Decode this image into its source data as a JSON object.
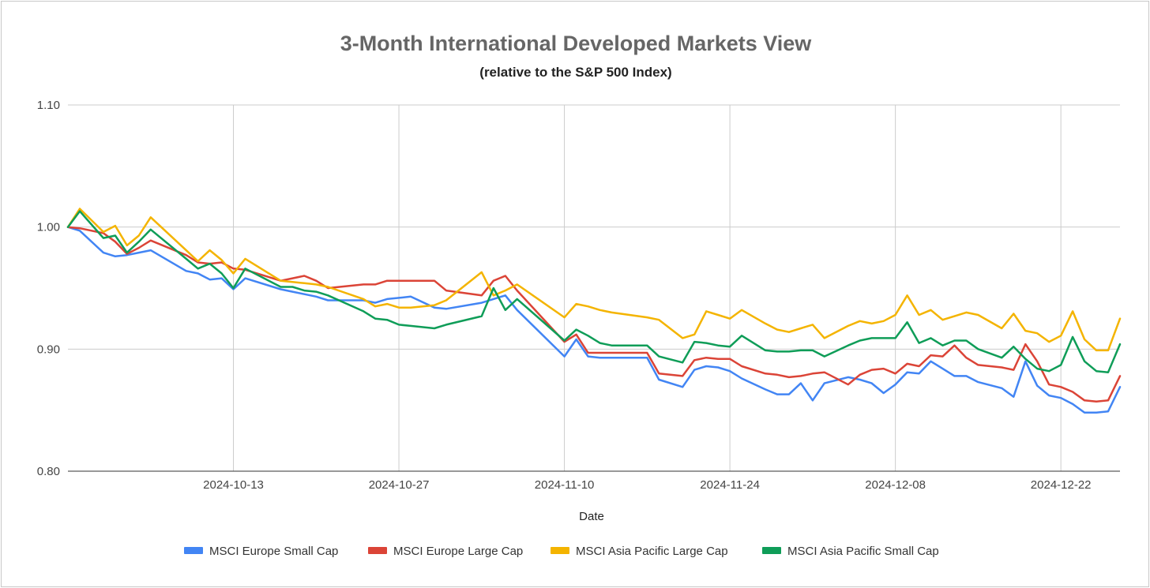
{
  "chart_data": {
    "type": "line",
    "title": "3-Month International Developed Markets View",
    "subtitle": "(relative to the S&P 500 Index)",
    "xlabel": "Date",
    "ylabel": "",
    "ylim": [
      0.8,
      1.1
    ],
    "yticks": [
      0.8,
      0.9,
      1.0,
      1.1
    ],
    "ytick_labels": [
      "0.80",
      "0.90",
      "1.00",
      "1.10"
    ],
    "xlim": [
      0,
      89
    ],
    "xticks": [
      {
        "t": 14,
        "label": "2024-10-13"
      },
      {
        "t": 28,
        "label": "2024-10-27"
      },
      {
        "t": 42,
        "label": "2024-11-10"
      },
      {
        "t": 56,
        "label": "2024-11-24"
      },
      {
        "t": 70,
        "label": "2024-12-08"
      },
      {
        "t": 84,
        "label": "2024-12-22"
      }
    ],
    "grid": true,
    "legend_position": "bottom",
    "series": [
      {
        "name": "MSCI Europe Small Cap",
        "color": "#4285f4",
        "x": [
          0,
          1,
          3,
          4,
          5,
          6,
          7,
          10,
          11,
          12,
          13,
          14,
          15,
          18,
          19,
          20,
          21,
          22,
          25,
          26,
          27,
          28,
          29,
          31,
          32,
          35,
          36,
          37,
          38,
          42,
          43,
          44,
          45,
          46,
          49,
          50,
          52,
          53,
          54,
          55,
          56,
          57,
          59,
          60,
          61,
          62,
          63,
          64,
          66,
          67,
          68,
          69,
          70,
          71,
          72,
          73,
          74,
          75,
          76,
          77,
          79,
          80,
          81,
          82,
          83,
          84,
          85,
          86,
          87,
          88,
          89
        ],
        "y": [
          1.0,
          0.997,
          0.979,
          0.976,
          0.977,
          0.979,
          0.981,
          0.964,
          0.962,
          0.957,
          0.958,
          0.949,
          0.958,
          0.949,
          0.947,
          0.945,
          0.943,
          0.94,
          0.94,
          0.938,
          0.941,
          0.942,
          0.943,
          0.934,
          0.933,
          0.938,
          0.941,
          0.944,
          0.932,
          0.894,
          0.908,
          0.894,
          0.893,
          0.893,
          0.893,
          0.875,
          0.869,
          0.883,
          0.886,
          0.885,
          0.882,
          0.876,
          0.867,
          0.863,
          0.863,
          0.872,
          0.858,
          0.872,
          0.877,
          0.875,
          0.872,
          0.864,
          0.871,
          0.881,
          0.88,
          0.89,
          0.884,
          0.878,
          0.878,
          0.873,
          0.868,
          0.861,
          0.89,
          0.87,
          0.862,
          0.86,
          0.855,
          0.848,
          0.848,
          0.849,
          0.869
        ]
      },
      {
        "name": "MSCI Europe Large Cap",
        "color": "#db4437",
        "x": [
          0,
          1,
          3,
          4,
          5,
          6,
          7,
          10,
          11,
          12,
          13,
          14,
          15,
          18,
          19,
          20,
          21,
          22,
          25,
          26,
          27,
          28,
          29,
          31,
          32,
          35,
          36,
          37,
          38,
          42,
          43,
          44,
          45,
          46,
          49,
          50,
          52,
          53,
          54,
          55,
          56,
          57,
          59,
          60,
          61,
          62,
          63,
          64,
          66,
          67,
          68,
          69,
          70,
          71,
          72,
          73,
          74,
          75,
          76,
          77,
          79,
          80,
          81,
          82,
          83,
          84,
          85,
          86,
          87,
          88,
          89
        ],
        "y": [
          1.0,
          0.999,
          0.995,
          0.988,
          0.978,
          0.983,
          0.989,
          0.977,
          0.971,
          0.97,
          0.971,
          0.966,
          0.965,
          0.956,
          0.958,
          0.96,
          0.956,
          0.95,
          0.953,
          0.953,
          0.956,
          0.956,
          0.956,
          0.956,
          0.948,
          0.944,
          0.956,
          0.96,
          0.948,
          0.906,
          0.912,
          0.897,
          0.897,
          0.897,
          0.897,
          0.88,
          0.878,
          0.891,
          0.893,
          0.892,
          0.892,
          0.886,
          0.88,
          0.879,
          0.877,
          0.878,
          0.88,
          0.881,
          0.871,
          0.879,
          0.883,
          0.884,
          0.88,
          0.888,
          0.886,
          0.895,
          0.894,
          0.903,
          0.893,
          0.887,
          0.885,
          0.883,
          0.904,
          0.89,
          0.871,
          0.869,
          0.865,
          0.858,
          0.857,
          0.858,
          0.878
        ]
      },
      {
        "name": "MSCI Asia Pacific Large Cap",
        "color": "#f4b400",
        "x": [
          0,
          1,
          3,
          4,
          5,
          6,
          7,
          10,
          11,
          12,
          13,
          14,
          15,
          18,
          19,
          20,
          21,
          22,
          25,
          26,
          27,
          28,
          29,
          31,
          32,
          35,
          36,
          37,
          38,
          42,
          43,
          44,
          45,
          46,
          49,
          50,
          52,
          53,
          54,
          55,
          56,
          57,
          59,
          60,
          61,
          62,
          63,
          64,
          66,
          67,
          68,
          69,
          70,
          71,
          72,
          73,
          74,
          75,
          76,
          77,
          79,
          80,
          81,
          82,
          83,
          84,
          85,
          86,
          87,
          88,
          89
        ],
        "y": [
          1.0,
          1.015,
          0.996,
          1.001,
          0.985,
          0.993,
          1.008,
          0.981,
          0.972,
          0.981,
          0.973,
          0.962,
          0.974,
          0.956,
          0.955,
          0.954,
          0.953,
          0.951,
          0.941,
          0.935,
          0.937,
          0.934,
          0.934,
          0.936,
          0.94,
          0.963,
          0.944,
          0.948,
          0.953,
          0.926,
          0.937,
          0.935,
          0.932,
          0.93,
          0.926,
          0.924,
          0.909,
          0.912,
          0.931,
          0.928,
          0.925,
          0.932,
          0.921,
          0.916,
          0.914,
          0.917,
          0.92,
          0.909,
          0.919,
          0.923,
          0.921,
          0.923,
          0.928,
          0.944,
          0.928,
          0.932,
          0.924,
          0.927,
          0.93,
          0.928,
          0.917,
          0.929,
          0.915,
          0.913,
          0.906,
          0.911,
          0.931,
          0.908,
          0.899,
          0.899,
          0.925
        ]
      },
      {
        "name": "MSCI Asia Pacific Small Cap",
        "color": "#0f9d58",
        "x": [
          0,
          1,
          3,
          4,
          5,
          6,
          7,
          10,
          11,
          12,
          13,
          14,
          15,
          18,
          19,
          20,
          21,
          22,
          25,
          26,
          27,
          28,
          29,
          31,
          32,
          35,
          36,
          37,
          38,
          42,
          43,
          44,
          45,
          46,
          49,
          50,
          52,
          53,
          54,
          55,
          56,
          57,
          59,
          60,
          61,
          62,
          63,
          64,
          66,
          67,
          68,
          69,
          70,
          71,
          72,
          73,
          74,
          75,
          76,
          77,
          79,
          80,
          81,
          82,
          83,
          84,
          85,
          86,
          87,
          88,
          89
        ],
        "y": [
          1.0,
          1.013,
          0.991,
          0.993,
          0.979,
          0.988,
          0.998,
          0.974,
          0.966,
          0.97,
          0.962,
          0.95,
          0.966,
          0.951,
          0.951,
          0.948,
          0.947,
          0.944,
          0.931,
          0.925,
          0.924,
          0.92,
          0.919,
          0.917,
          0.92,
          0.927,
          0.95,
          0.932,
          0.941,
          0.907,
          0.916,
          0.911,
          0.905,
          0.903,
          0.903,
          0.894,
          0.889,
          0.906,
          0.905,
          0.903,
          0.902,
          0.911,
          0.899,
          0.898,
          0.898,
          0.899,
          0.899,
          0.894,
          0.903,
          0.907,
          0.909,
          0.909,
          0.909,
          0.922,
          0.905,
          0.909,
          0.903,
          0.907,
          0.907,
          0.9,
          0.893,
          0.902,
          0.892,
          0.884,
          0.882,
          0.887,
          0.91,
          0.89,
          0.882,
          0.881,
          0.904
        ]
      }
    ]
  }
}
